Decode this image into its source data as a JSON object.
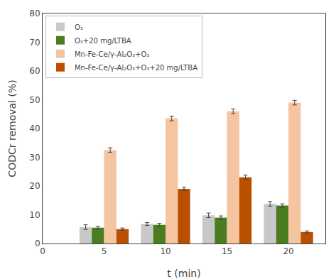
{
  "chart_data": {
    "type": "bar",
    "x": [
      5,
      10,
      15,
      20
    ],
    "series": [
      {
        "name": "O₃",
        "color": "#c8c8c8",
        "values": [
          5.7,
          6.8,
          9.8,
          13.8
        ],
        "errors": [
          0.8,
          0.5,
          0.8,
          0.8
        ]
      },
      {
        "name": "O₃+20 mg/LTBA",
        "color": "#4a7c20",
        "values": [
          5.5,
          6.5,
          9.0,
          13.2
        ],
        "errors": [
          0.5,
          0.5,
          0.6,
          0.6
        ]
      },
      {
        "name": "Mn-Fe-Ce/γ-Al₂O₃+O₃",
        "color": "#f5c4a0",
        "values": [
          32.5,
          43.5,
          46.0,
          49.0
        ],
        "errors": [
          0.8,
          0.8,
          0.8,
          0.8
        ]
      },
      {
        "name": "Mn-Fe-Ce/γ-Al₂O₃+O₃+20 mg/LTBA",
        "color": "#b85000",
        "values": [
          5.0,
          19.0,
          23.0,
          4.0
        ],
        "errors": [
          0.4,
          0.6,
          0.8,
          0.4
        ]
      }
    ],
    "xlabel": "t (min)",
    "ylabel": "CODCr removal (%)",
    "xlim": [
      0,
      23
    ],
    "xticks": [
      0,
      5,
      10,
      15,
      20
    ],
    "ylim": [
      0,
      80
    ],
    "yticks": [
      0,
      10,
      20,
      30,
      40,
      50,
      60,
      70,
      80
    ],
    "grid": false,
    "legend": "upper left"
  }
}
